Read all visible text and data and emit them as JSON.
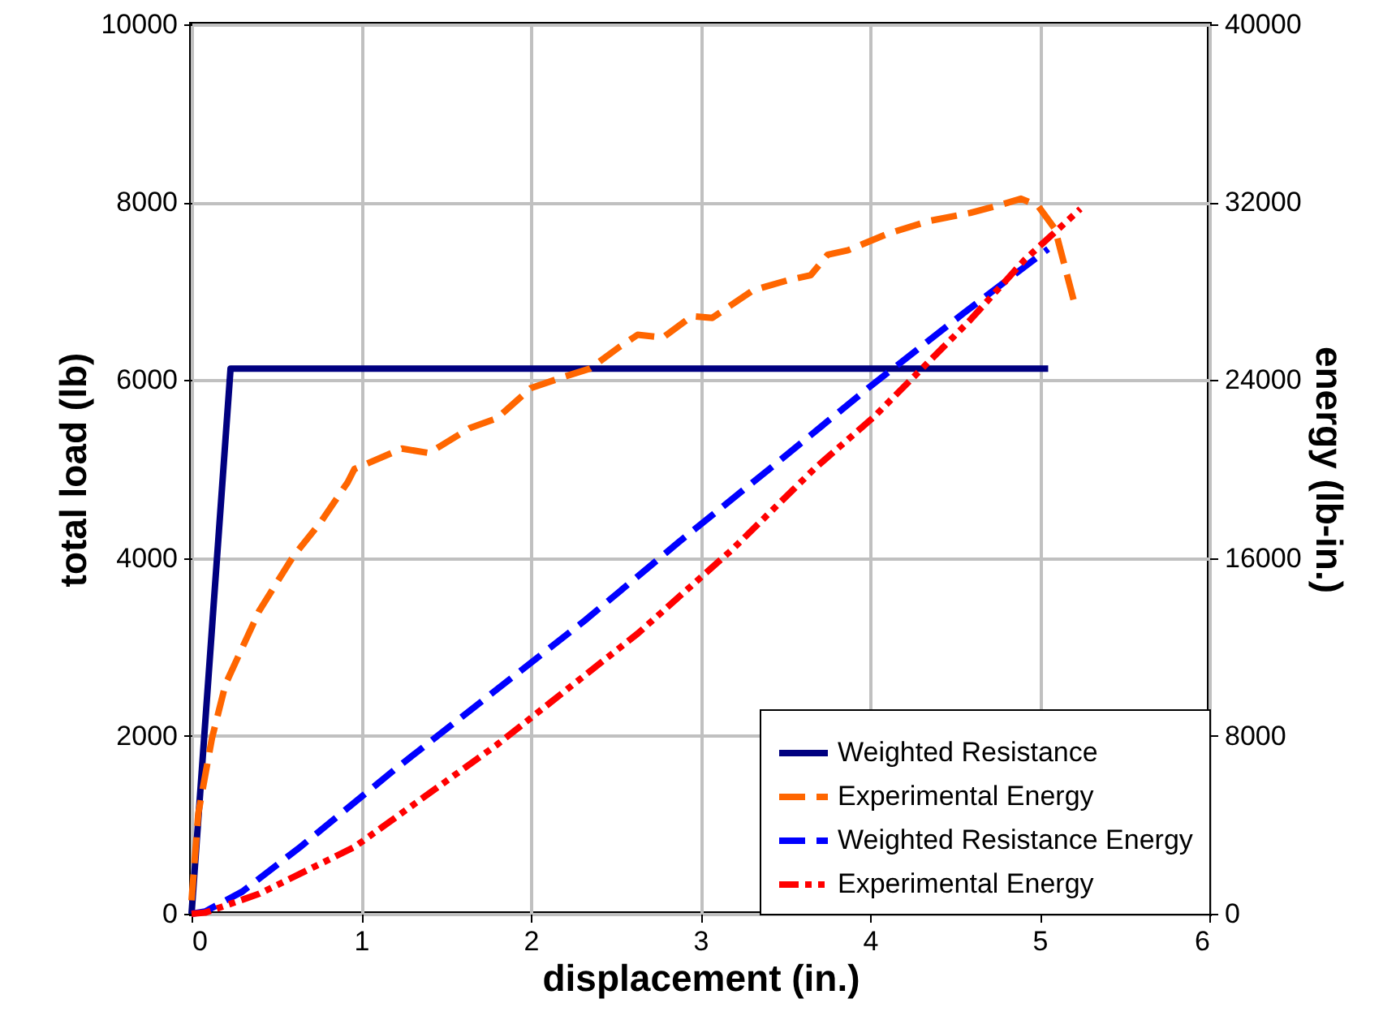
{
  "chart_data": {
    "type": "line",
    "xlabel": "displacement (in.)",
    "ylabel": "total load (lb)",
    "y2label": "energy (lb-in.)",
    "xlim": [
      0,
      6
    ],
    "xticks": [
      0,
      1,
      2,
      3,
      4,
      5,
      6
    ],
    "ylim": [
      0,
      10000
    ],
    "yticks": [
      0,
      2000,
      4000,
      6000,
      8000,
      10000
    ],
    "y2lim": [
      0,
      40000
    ],
    "y2ticks": [
      0,
      8000,
      16000,
      24000,
      32000,
      40000
    ],
    "grid": true,
    "legend": "bottom right",
    "marker": "none",
    "series": [
      {
        "name": "Weighted Resistance",
        "color": "#000080",
        "line_style": "solid",
        "axis": "y",
        "x": [
          0,
          0.23,
          5.05
        ],
        "values": [
          0,
          6130,
          6130
        ]
      },
      {
        "name": "Experimental Energy",
        "color": "#ff6600",
        "line_style": "dashed",
        "axis": "y",
        "x": [
          0,
          0.04,
          0.12,
          0.2,
          0.4,
          0.6,
          0.76,
          0.92,
          0.96,
          1.24,
          1.4,
          1.64,
          1.8,
          2.0,
          2.2,
          2.35,
          2.52,
          2.63,
          2.78,
          2.95,
          3.07,
          3.31,
          3.51,
          3.65,
          3.75,
          3.87,
          4.11,
          4.35,
          4.59,
          4.75,
          4.89,
          4.99,
          5.09,
          5.2
        ],
        "values": [
          150,
          1130,
          1970,
          2580,
          3410,
          4020,
          4400,
          4850,
          5000,
          5230,
          5180,
          5460,
          5570,
          5910,
          6040,
          6130,
          6370,
          6510,
          6480,
          6720,
          6700,
          7010,
          7120,
          7180,
          7410,
          7460,
          7650,
          7790,
          7880,
          7960,
          8040,
          7960,
          7700,
          6900
        ]
      },
      {
        "name": "Weighted Resistance Energy",
        "color": "#0000ff",
        "line_style": "dashed",
        "axis": "y2",
        "x": [
          0,
          0.08,
          0.3,
          0.64,
          1.2,
          1.76,
          2.32,
          2.87,
          3.43,
          3.99,
          4.55,
          5.05
        ],
        "values": [
          0,
          100,
          1000,
          3000,
          6500,
          9850,
          13200,
          16700,
          20150,
          23650,
          27000,
          29900
        ]
      },
      {
        "name": "Experimental Energy",
        "color": "#ff0000",
        "line_style": "dotted",
        "axis": "y2",
        "x": [
          0,
          0.08,
          0.4,
          0.96,
          1.8,
          2.63,
          3.19,
          3.67,
          4.03,
          4.31,
          4.59,
          4.91,
          5.24
        ],
        "values": [
          0,
          50,
          900,
          3000,
          7600,
          12600,
          16400,
          20000,
          22400,
          24550,
          26700,
          29400,
          31700
        ]
      }
    ]
  }
}
